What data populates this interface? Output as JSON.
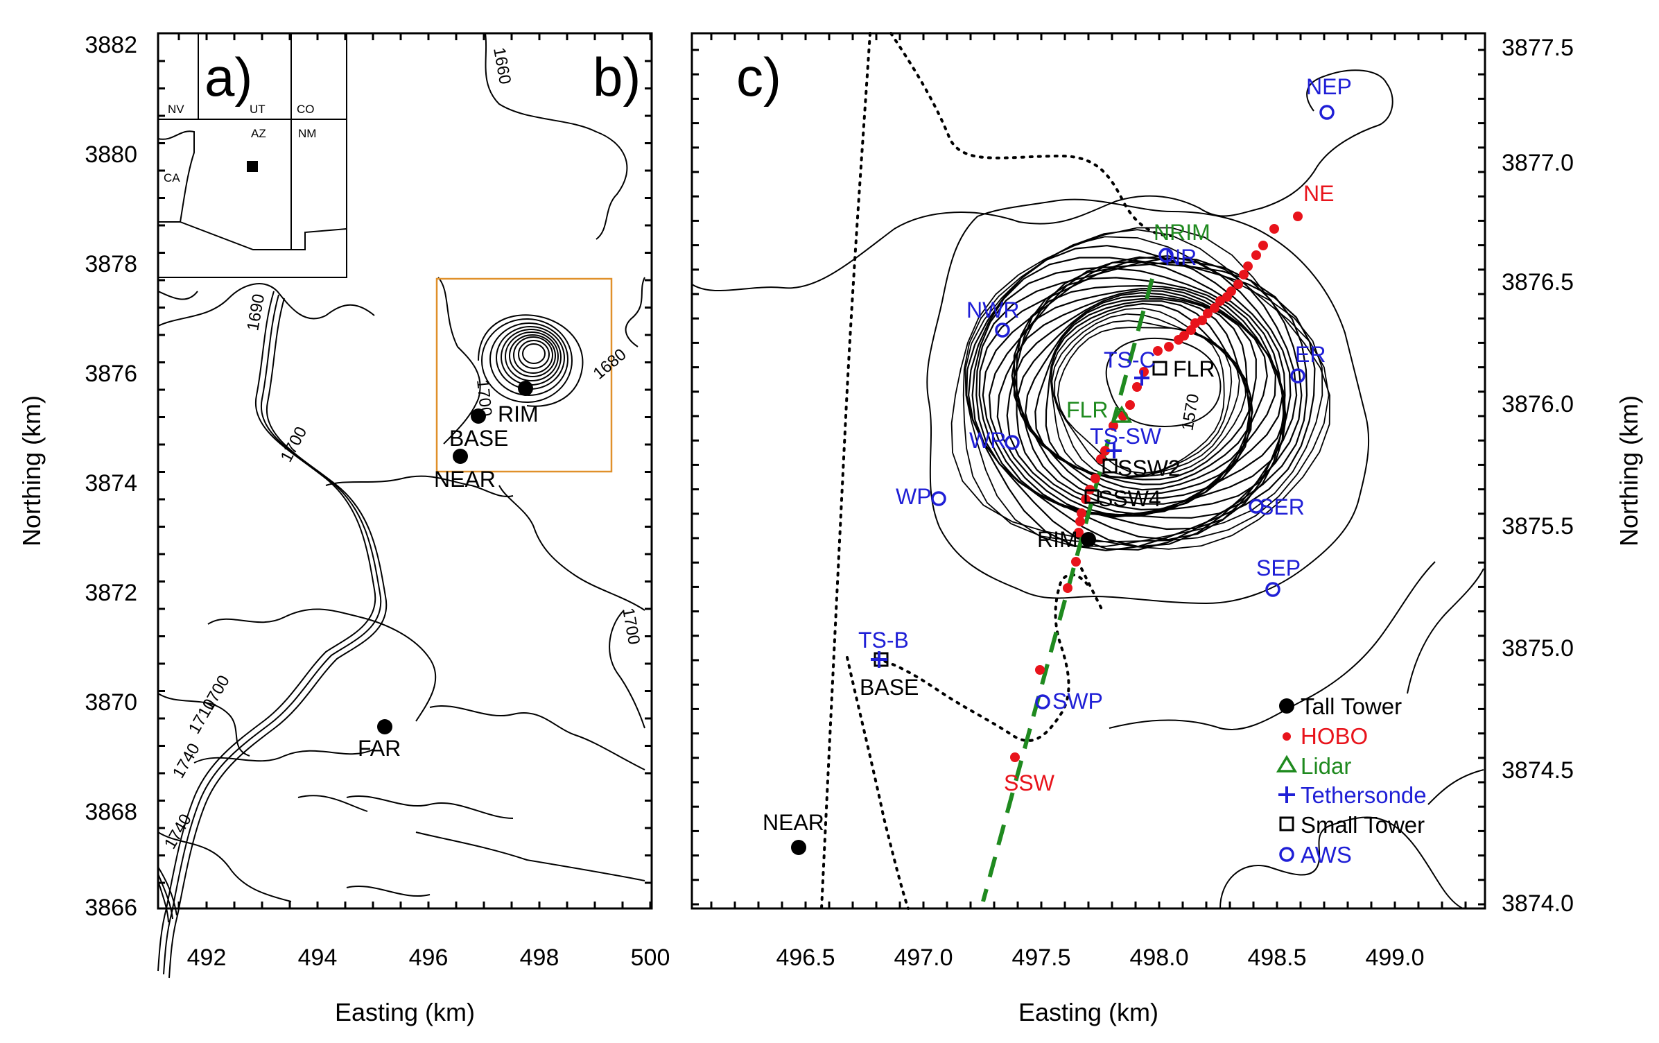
{
  "colors": {
    "black": "#000000",
    "red": "#e8131b",
    "green": "#1f8a1f",
    "blue": "#1f1fd6",
    "orange": "#e0902a"
  },
  "left_panel": {
    "inset_label": "a)",
    "panel_label": "b)",
    "xlabel": "Easting (km)",
    "ylabel": "Northing (km)",
    "xticks": [
      "492",
      "494",
      "496",
      "498",
      "500"
    ],
    "yticks": [
      "3882",
      "3880",
      "3878",
      "3876",
      "3874",
      "3872",
      "3870",
      "3868",
      "3866"
    ],
    "states": [
      "NV",
      "UT",
      "CO",
      "CA",
      "AZ",
      "NM"
    ],
    "contour_labels": [
      "1660",
      "1690",
      "1700",
      "1700",
      "1680",
      "1700",
      "1700",
      "1710",
      "1740",
      "1740"
    ],
    "sites": [
      "RIM",
      "BASE",
      "NEAR",
      "FAR"
    ]
  },
  "right_panel": {
    "panel_label": "c)",
    "xlabel": "Easting (km)",
    "ylabel": "Northing (km)",
    "xticks": [
      "496.5",
      "497.0",
      "497.5",
      "498.0",
      "498.5",
      "499.0"
    ],
    "yticks": [
      "3877.5",
      "3877.0",
      "3876.5",
      "3876.0",
      "3875.5",
      "3875.0",
      "3874.5",
      "3874.0"
    ],
    "contour_label": "1570",
    "black_labels": [
      "FLR",
      "SSW2",
      "SSW4",
      "RIM",
      "BASE",
      "NEAR"
    ],
    "blue_labels": [
      "NEP",
      "NR",
      "NWR",
      "TS-C",
      "ER",
      "WR",
      "TS-SW",
      "WP",
      "SER",
      "SEP",
      "TS-B",
      "SWP"
    ],
    "green_labels": [
      "NRIM",
      "FLR"
    ],
    "red_labels": [
      "NE",
      "SSW"
    ],
    "legend": [
      "Tall Tower",
      "HOBO",
      "Lidar",
      "Tethersonde",
      "Small Tower",
      "AWS"
    ]
  }
}
